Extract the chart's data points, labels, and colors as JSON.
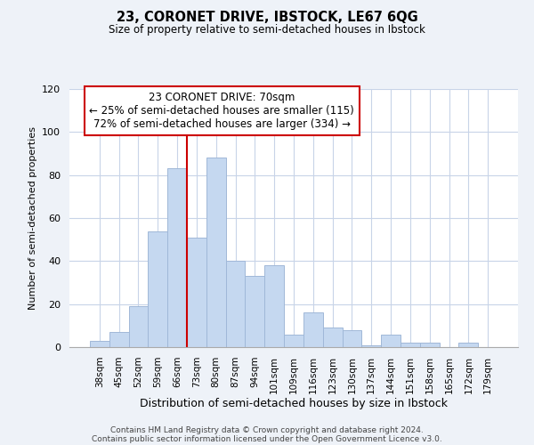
{
  "title": "23, CORONET DRIVE, IBSTOCK, LE67 6QG",
  "subtitle": "Size of property relative to semi-detached houses in Ibstock",
  "xlabel": "Distribution of semi-detached houses by size in Ibstock",
  "ylabel": "Number of semi-detached properties",
  "categories": [
    "38sqm",
    "45sqm",
    "52sqm",
    "59sqm",
    "66sqm",
    "73sqm",
    "80sqm",
    "87sqm",
    "94sqm",
    "101sqm",
    "109sqm",
    "116sqm",
    "123sqm",
    "130sqm",
    "137sqm",
    "144sqm",
    "151sqm",
    "158sqm",
    "165sqm",
    "172sqm",
    "179sqm"
  ],
  "values": [
    3,
    7,
    19,
    54,
    83,
    51,
    88,
    40,
    33,
    38,
    6,
    16,
    9,
    8,
    1,
    6,
    2,
    2,
    0,
    2,
    0
  ],
  "bar_color": "#c5d8f0",
  "bar_edge_color": "#a0b8d8",
  "highlight_line_color": "#cc0000",
  "annotation_title": "23 CORONET DRIVE: 70sqm",
  "annotation_line1": "← 25% of semi-detached houses are smaller (115)",
  "annotation_line2": "72% of semi-detached houses are larger (334) →",
  "annotation_box_color": "#ffffff",
  "annotation_box_edge": "#cc0000",
  "ylim": [
    0,
    120
  ],
  "footer1": "Contains HM Land Registry data © Crown copyright and database right 2024.",
  "footer2": "Contains public sector information licensed under the Open Government Licence v3.0.",
  "background_color": "#eef2f8",
  "plot_background_color": "#ffffff"
}
